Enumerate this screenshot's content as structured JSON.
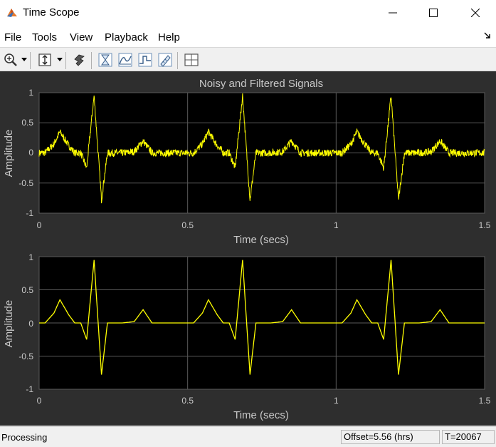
{
  "window": {
    "title": "Time Scope",
    "icon": "matlab-icon",
    "controls": {
      "minimize": "minimize-icon",
      "maximize": "maximize-icon",
      "close": "close-icon"
    }
  },
  "menu": {
    "items": [
      "File",
      "Tools",
      "View",
      "Playback",
      "Help"
    ],
    "undock_icon": "undock-arrow-icon"
  },
  "toolbar": {
    "buttons": [
      "zoom-in-icon",
      "scale-axes-icon",
      "highlight-simulink-icon",
      "triggers-icon",
      "cursor-measurements-icon",
      "signal-statistics-icon",
      "peak-finder-icon",
      "bilevel-measurements-icon",
      "layout-icon"
    ]
  },
  "colors": {
    "figure_bg": "#2e2e2e",
    "axes_bg": "#000000",
    "grid": "#5a5a5a",
    "axis_text": "#c8c8c8",
    "signal": "#ffff00"
  },
  "plots": [
    {
      "title": "Noisy and Filtered Signals",
      "xlabel": "Time (secs)",
      "ylabel": "Amplitude",
      "xlim": [
        0,
        1.5
      ],
      "ylim": [
        -1,
        1
      ],
      "xticks": [
        "0",
        "0.5",
        "1",
        "1.5"
      ],
      "yticks": [
        "1",
        "0.5",
        "0",
        "-0.5",
        "-1"
      ],
      "noisy": true
    },
    {
      "title": "",
      "xlabel": "Time (secs)",
      "ylabel": "Amplitude",
      "xlim": [
        0,
        1.5
      ],
      "ylim": [
        -1,
        1
      ],
      "xticks": [
        "0",
        "0.5",
        "1",
        "1.5"
      ],
      "yticks": [
        "1",
        "0.5",
        "0",
        "-0.5",
        "-1"
      ],
      "noisy": false
    }
  ],
  "chart_data": [
    {
      "type": "line",
      "title": "Noisy and Filtered Signals",
      "xlabel": "Time (secs)",
      "ylabel": "Amplitude",
      "xlim": [
        0,
        1.5
      ],
      "ylim": [
        -1,
        1
      ],
      "grid": true,
      "period": 0.5,
      "beat_start_times": [
        0,
        0.5,
        1.0
      ],
      "beat_shape": {
        "x": [
          0,
          0.02,
          0.05,
          0.07,
          0.1,
          0.12,
          0.14,
          0.16,
          0.185,
          0.21,
          0.23,
          0.28,
          0.32,
          0.35,
          0.38,
          0.5
        ],
        "y": [
          0,
          0,
          0.15,
          0.35,
          0.12,
          0,
          0,
          -0.25,
          0.95,
          -0.78,
          0,
          0,
          0.02,
          0.2,
          0,
          0
        ]
      },
      "noise_amplitude": 0.06
    },
    {
      "type": "line",
      "title": "",
      "xlabel": "Time (secs)",
      "ylabel": "Amplitude",
      "xlim": [
        0,
        1.5
      ],
      "ylim": [
        -1,
        1
      ],
      "grid": true,
      "period": 0.5,
      "beat_start_times": [
        0,
        0.5,
        1.0
      ],
      "beat_shape": {
        "x": [
          0,
          0.02,
          0.05,
          0.07,
          0.1,
          0.12,
          0.14,
          0.16,
          0.185,
          0.21,
          0.23,
          0.28,
          0.32,
          0.35,
          0.38,
          0.5
        ],
        "y": [
          0,
          0,
          0.15,
          0.35,
          0.12,
          0,
          0,
          -0.25,
          0.95,
          -0.78,
          0,
          0,
          0.02,
          0.2,
          0,
          0
        ]
      },
      "noise_amplitude": 0
    }
  ],
  "status": {
    "text": "Processing",
    "offset": "Offset=5.56 (hrs)",
    "time": "T=20067"
  }
}
